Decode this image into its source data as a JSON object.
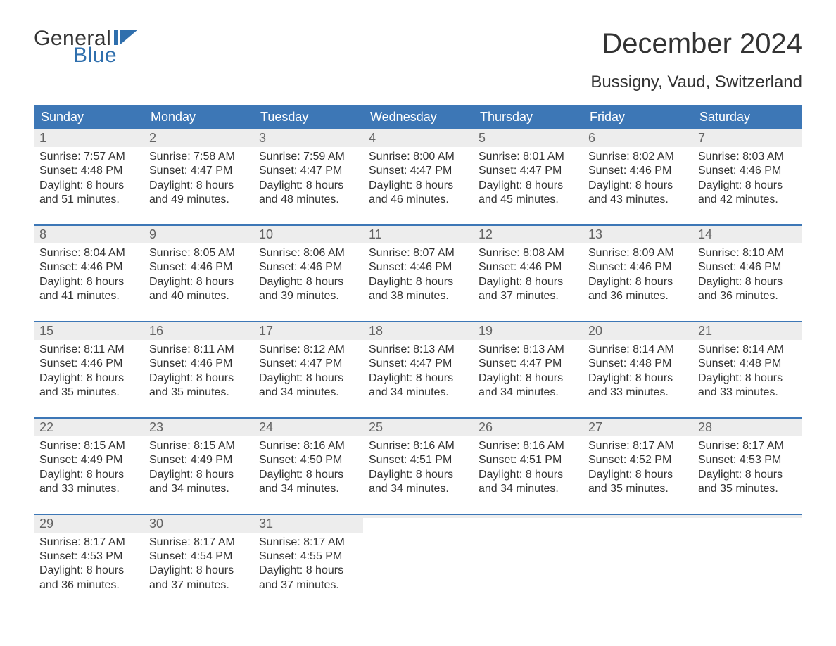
{
  "brand": {
    "word1": "General",
    "word2": "Blue",
    "accent_color": "#2f6fad"
  },
  "title": "December 2024",
  "location": "Bussigny, Vaud, Switzerland",
  "colors": {
    "header_bg": "#3d77b6",
    "header_text": "#ffffff",
    "daynum_bg": "#ededed",
    "daynum_text": "#636363",
    "body_text": "#333333",
    "week_divider": "#3d77b6",
    "page_bg": "#ffffff"
  },
  "typography": {
    "title_fontsize": 40,
    "location_fontsize": 24,
    "dow_fontsize": 18,
    "daynum_fontsize": 18,
    "body_fontsize": 16
  },
  "days_of_week": [
    "Sunday",
    "Monday",
    "Tuesday",
    "Wednesday",
    "Thursday",
    "Friday",
    "Saturday"
  ],
  "labels": {
    "sunrise": "Sunrise:",
    "sunset": "Sunset:",
    "daylight": "Daylight:"
  },
  "weeks": [
    [
      {
        "n": 1,
        "sunrise": "7:57 AM",
        "sunset": "4:48 PM",
        "daylight": "8 hours and 51 minutes."
      },
      {
        "n": 2,
        "sunrise": "7:58 AM",
        "sunset": "4:47 PM",
        "daylight": "8 hours and 49 minutes."
      },
      {
        "n": 3,
        "sunrise": "7:59 AM",
        "sunset": "4:47 PM",
        "daylight": "8 hours and 48 minutes."
      },
      {
        "n": 4,
        "sunrise": "8:00 AM",
        "sunset": "4:47 PM",
        "daylight": "8 hours and 46 minutes."
      },
      {
        "n": 5,
        "sunrise": "8:01 AM",
        "sunset": "4:47 PM",
        "daylight": "8 hours and 45 minutes."
      },
      {
        "n": 6,
        "sunrise": "8:02 AM",
        "sunset": "4:46 PM",
        "daylight": "8 hours and 43 minutes."
      },
      {
        "n": 7,
        "sunrise": "8:03 AM",
        "sunset": "4:46 PM",
        "daylight": "8 hours and 42 minutes."
      }
    ],
    [
      {
        "n": 8,
        "sunrise": "8:04 AM",
        "sunset": "4:46 PM",
        "daylight": "8 hours and 41 minutes."
      },
      {
        "n": 9,
        "sunrise": "8:05 AM",
        "sunset": "4:46 PM",
        "daylight": "8 hours and 40 minutes."
      },
      {
        "n": 10,
        "sunrise": "8:06 AM",
        "sunset": "4:46 PM",
        "daylight": "8 hours and 39 minutes."
      },
      {
        "n": 11,
        "sunrise": "8:07 AM",
        "sunset": "4:46 PM",
        "daylight": "8 hours and 38 minutes."
      },
      {
        "n": 12,
        "sunrise": "8:08 AM",
        "sunset": "4:46 PM",
        "daylight": "8 hours and 37 minutes."
      },
      {
        "n": 13,
        "sunrise": "8:09 AM",
        "sunset": "4:46 PM",
        "daylight": "8 hours and 36 minutes."
      },
      {
        "n": 14,
        "sunrise": "8:10 AM",
        "sunset": "4:46 PM",
        "daylight": "8 hours and 36 minutes."
      }
    ],
    [
      {
        "n": 15,
        "sunrise": "8:11 AM",
        "sunset": "4:46 PM",
        "daylight": "8 hours and 35 minutes."
      },
      {
        "n": 16,
        "sunrise": "8:11 AM",
        "sunset": "4:46 PM",
        "daylight": "8 hours and 35 minutes."
      },
      {
        "n": 17,
        "sunrise": "8:12 AM",
        "sunset": "4:47 PM",
        "daylight": "8 hours and 34 minutes."
      },
      {
        "n": 18,
        "sunrise": "8:13 AM",
        "sunset": "4:47 PM",
        "daylight": "8 hours and 34 minutes."
      },
      {
        "n": 19,
        "sunrise": "8:13 AM",
        "sunset": "4:47 PM",
        "daylight": "8 hours and 34 minutes."
      },
      {
        "n": 20,
        "sunrise": "8:14 AM",
        "sunset": "4:48 PM",
        "daylight": "8 hours and 33 minutes."
      },
      {
        "n": 21,
        "sunrise": "8:14 AM",
        "sunset": "4:48 PM",
        "daylight": "8 hours and 33 minutes."
      }
    ],
    [
      {
        "n": 22,
        "sunrise": "8:15 AM",
        "sunset": "4:49 PM",
        "daylight": "8 hours and 33 minutes."
      },
      {
        "n": 23,
        "sunrise": "8:15 AM",
        "sunset": "4:49 PM",
        "daylight": "8 hours and 34 minutes."
      },
      {
        "n": 24,
        "sunrise": "8:16 AM",
        "sunset": "4:50 PM",
        "daylight": "8 hours and 34 minutes."
      },
      {
        "n": 25,
        "sunrise": "8:16 AM",
        "sunset": "4:51 PM",
        "daylight": "8 hours and 34 minutes."
      },
      {
        "n": 26,
        "sunrise": "8:16 AM",
        "sunset": "4:51 PM",
        "daylight": "8 hours and 34 minutes."
      },
      {
        "n": 27,
        "sunrise": "8:17 AM",
        "sunset": "4:52 PM",
        "daylight": "8 hours and 35 minutes."
      },
      {
        "n": 28,
        "sunrise": "8:17 AM",
        "sunset": "4:53 PM",
        "daylight": "8 hours and 35 minutes."
      }
    ],
    [
      {
        "n": 29,
        "sunrise": "8:17 AM",
        "sunset": "4:53 PM",
        "daylight": "8 hours and 36 minutes."
      },
      {
        "n": 30,
        "sunrise": "8:17 AM",
        "sunset": "4:54 PM",
        "daylight": "8 hours and 37 minutes."
      },
      {
        "n": 31,
        "sunrise": "8:17 AM",
        "sunset": "4:55 PM",
        "daylight": "8 hours and 37 minutes."
      },
      null,
      null,
      null,
      null
    ]
  ]
}
